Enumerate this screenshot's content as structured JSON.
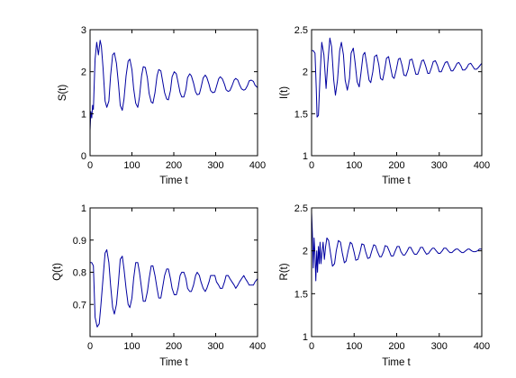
{
  "figure": {
    "background": "#ffffff",
    "line_color": "#0000a0"
  },
  "chart_data": [
    {
      "type": "line",
      "panel": "top-left",
      "xlabel": "Time t",
      "ylabel": "S(t)",
      "xlim": [
        0,
        400
      ],
      "ylim": [
        0,
        3
      ],
      "xticks": [
        0,
        100,
        200,
        300,
        400
      ],
      "yticks": [
        0,
        1,
        2,
        3
      ],
      "series": [
        {
          "color": "#0000a0",
          "x": [
            0,
            2,
            4,
            6,
            8,
            10,
            12,
            16,
            20,
            24,
            27,
            31,
            36,
            40,
            45,
            49,
            54,
            58,
            63,
            68,
            72,
            77,
            81,
            86,
            91,
            95,
            100,
            104,
            109,
            114,
            118,
            123,
            127,
            132,
            137,
            141,
            146,
            150,
            155,
            160,
            164,
            169,
            173,
            178,
            183,
            187,
            192,
            196,
            201,
            206,
            210,
            215,
            219,
            224,
            229,
            233,
            238,
            242,
            247,
            252,
            256,
            261,
            265,
            270,
            275,
            279,
            284,
            288,
            293,
            298,
            302,
            307,
            311,
            316,
            321,
            325,
            330,
            334,
            339,
            344,
            348,
            353,
            357,
            362,
            367,
            371,
            376,
            380,
            385,
            390,
            394,
            400
          ],
          "y": [
            0.6,
            1.05,
            0.9,
            1.2,
            1.1,
            1.75,
            2.3,
            2.7,
            2.4,
            2.75,
            2.6,
            2.1,
            1.3,
            1.15,
            1.3,
            1.9,
            2.4,
            2.45,
            2.2,
            1.7,
            1.2,
            1.08,
            1.35,
            1.9,
            2.25,
            2.3,
            2.05,
            1.6,
            1.25,
            1.15,
            1.4,
            1.9,
            2.12,
            2.1,
            1.85,
            1.48,
            1.28,
            1.25,
            1.5,
            1.9,
            2.05,
            2.02,
            1.8,
            1.5,
            1.35,
            1.33,
            1.55,
            1.88,
            2.0,
            1.95,
            1.75,
            1.5,
            1.4,
            1.4,
            1.58,
            1.86,
            1.95,
            1.9,
            1.73,
            1.52,
            1.45,
            1.47,
            1.62,
            1.85,
            1.92,
            1.86,
            1.7,
            1.55,
            1.5,
            1.52,
            1.65,
            1.83,
            1.88,
            1.83,
            1.7,
            1.57,
            1.53,
            1.55,
            1.66,
            1.8,
            1.84,
            1.8,
            1.69,
            1.59,
            1.56,
            1.58,
            1.67,
            1.78,
            1.8,
            1.77,
            1.68,
            1.62
          ]
        }
      ]
    },
    {
      "type": "line",
      "panel": "top-right",
      "xlabel": "Time t",
      "ylabel": "I(t)",
      "xlim": [
        0,
        400
      ],
      "ylim": [
        1,
        2.5
      ],
      "xticks": [
        0,
        100,
        200,
        300,
        400
      ],
      "yticks": [
        1,
        1.5,
        2,
        2.5
      ],
      "series": [
        {
          "color": "#0000a0",
          "x": [
            0,
            4,
            8,
            11,
            13,
            16,
            20,
            24,
            29,
            34,
            38,
            43,
            47,
            52,
            56,
            61,
            66,
            70,
            75,
            79,
            84,
            89,
            93,
            98,
            102,
            107,
            112,
            116,
            121,
            125,
            130,
            135,
            139,
            144,
            148,
            153,
            158,
            162,
            167,
            171,
            176,
            181,
            185,
            190,
            194,
            199,
            204,
            208,
            213,
            217,
            222,
            227,
            231,
            236,
            240,
            245,
            250,
            254,
            259,
            263,
            268,
            273,
            277,
            282,
            286,
            291,
            296,
            300,
            305,
            309,
            314,
            319,
            323,
            328,
            332,
            337,
            342,
            346,
            351,
            355,
            360,
            365,
            369,
            374,
            378,
            383,
            388,
            392,
            400
          ],
          "y": [
            2.25,
            2.25,
            2.22,
            1.8,
            1.46,
            1.48,
            1.95,
            2.35,
            2.2,
            1.8,
            2.1,
            2.4,
            2.3,
            1.9,
            1.72,
            1.9,
            2.25,
            2.35,
            2.2,
            1.9,
            1.78,
            1.92,
            2.22,
            2.28,
            2.12,
            1.88,
            1.82,
            1.98,
            2.2,
            2.23,
            2.08,
            1.9,
            1.87,
            2.0,
            2.18,
            2.2,
            2.08,
            1.92,
            1.9,
            2.0,
            2.16,
            2.18,
            2.07,
            1.94,
            1.92,
            2.02,
            2.15,
            2.16,
            2.07,
            1.96,
            1.95,
            2.03,
            2.14,
            2.15,
            2.07,
            1.97,
            1.97,
            2.04,
            2.13,
            2.14,
            2.07,
            1.98,
            1.98,
            2.05,
            2.12,
            2.13,
            2.07,
            2.0,
            2.0,
            2.05,
            2.11,
            2.12,
            2.07,
            2.01,
            2.01,
            2.05,
            2.1,
            2.11,
            2.07,
            2.02,
            2.02,
            2.05,
            2.09,
            2.1,
            2.07,
            2.03,
            2.03,
            2.05,
            2.1
          ]
        }
      ]
    },
    {
      "type": "line",
      "panel": "bottom-left",
      "xlabel": "Time t",
      "ylabel": "Q(t)",
      "xlim": [
        0,
        400
      ],
      "ylim": [
        0.6,
        1
      ],
      "xticks": [
        0,
        100,
        200,
        300,
        400
      ],
      "yticks": [
        0.7,
        0.8,
        0.9,
        1
      ],
      "series": [
        {
          "color": "#0000a0",
          "x": [
            0,
            4,
            8,
            12,
            17,
            22,
            26,
            31,
            36,
            40,
            45,
            49,
            54,
            58,
            63,
            68,
            72,
            77,
            81,
            86,
            91,
            95,
            100,
            104,
            109,
            114,
            118,
            123,
            127,
            132,
            137,
            141,
            146,
            150,
            155,
            160,
            164,
            169,
            173,
            178,
            183,
            187,
            192,
            196,
            201,
            206,
            210,
            215,
            219,
            224,
            229,
            233,
            238,
            242,
            247,
            252,
            256,
            261,
            265,
            270,
            275,
            279,
            284,
            288,
            293,
            298,
            302,
            307,
            311,
            316,
            321,
            325,
            330,
            334,
            339,
            344,
            348,
            353,
            357,
            362,
            367,
            371,
            376,
            380,
            385,
            390,
            394,
            400
          ],
          "y": [
            0.83,
            0.83,
            0.82,
            0.66,
            0.63,
            0.64,
            0.7,
            0.78,
            0.86,
            0.87,
            0.83,
            0.76,
            0.69,
            0.67,
            0.7,
            0.77,
            0.84,
            0.85,
            0.81,
            0.75,
            0.7,
            0.69,
            0.72,
            0.78,
            0.83,
            0.83,
            0.8,
            0.75,
            0.71,
            0.71,
            0.74,
            0.78,
            0.82,
            0.82,
            0.79,
            0.75,
            0.72,
            0.72,
            0.75,
            0.79,
            0.81,
            0.81,
            0.78,
            0.75,
            0.73,
            0.73,
            0.75,
            0.79,
            0.8,
            0.8,
            0.78,
            0.75,
            0.74,
            0.74,
            0.76,
            0.79,
            0.8,
            0.79,
            0.77,
            0.75,
            0.74,
            0.75,
            0.77,
            0.79,
            0.79,
            0.79,
            0.77,
            0.76,
            0.75,
            0.75,
            0.77,
            0.79,
            0.79,
            0.78,
            0.77,
            0.76,
            0.75,
            0.76,
            0.77,
            0.78,
            0.79,
            0.78,
            0.77,
            0.76,
            0.76,
            0.76,
            0.77,
            0.78
          ]
        }
      ]
    },
    {
      "type": "line",
      "panel": "bottom-right",
      "xlabel": "Time t",
      "ylabel": "R(t)",
      "xlim": [
        0,
        400
      ],
      "ylim": [
        1,
        2.5
      ],
      "xticks": [
        0,
        100,
        200,
        300,
        400
      ],
      "yticks": [
        1,
        1.5,
        2,
        2.5
      ],
      "series": [
        {
          "color": "#0000a0",
          "x": [
            0,
            2,
            4,
            6,
            8,
            10,
            12,
            14,
            16,
            18,
            20,
            22,
            24,
            27,
            30,
            33,
            36,
            40,
            45,
            49,
            54,
            58,
            63,
            68,
            72,
            77,
            81,
            86,
            91,
            95,
            100,
            104,
            109,
            114,
            118,
            123,
            127,
            132,
            137,
            141,
            146,
            150,
            155,
            160,
            164,
            169,
            173,
            178,
            183,
            187,
            192,
            196,
            201,
            206,
            210,
            215,
            219,
            224,
            229,
            233,
            238,
            242,
            247,
            252,
            256,
            261,
            265,
            270,
            275,
            279,
            284,
            288,
            293,
            298,
            302,
            307,
            311,
            316,
            321,
            325,
            330,
            334,
            339,
            344,
            348,
            353,
            357,
            362,
            367,
            371,
            376,
            380,
            385,
            390,
            394,
            400
          ],
          "y": [
            2.45,
            2.2,
            1.8,
            2.15,
            1.95,
            1.65,
            2.0,
            1.75,
            2.05,
            1.85,
            2.1,
            1.85,
            1.95,
            2.1,
            1.9,
            2.05,
            2.15,
            2.12,
            1.95,
            1.82,
            1.85,
            2.0,
            2.12,
            2.1,
            1.98,
            1.86,
            1.88,
            2.0,
            2.1,
            2.08,
            1.98,
            1.89,
            1.9,
            1.99,
            2.08,
            2.07,
            1.99,
            1.91,
            1.92,
            1.99,
            2.07,
            2.06,
            1.99,
            1.93,
            1.93,
            1.99,
            2.06,
            2.05,
            1.99,
            1.94,
            1.94,
            1.99,
            2.05,
            2.05,
            1.99,
            1.95,
            1.95,
            1.99,
            2.04,
            2.04,
            1.99,
            1.96,
            1.96,
            2.0,
            2.04,
            2.04,
            2.0,
            1.96,
            1.97,
            2.0,
            2.03,
            2.03,
            2.0,
            1.97,
            1.97,
            2.0,
            2.03,
            2.03,
            2.0,
            1.98,
            1.98,
            2.0,
            2.02,
            2.02,
            2.0,
            1.98,
            1.98,
            2.0,
            2.02,
            2.02,
            2.0,
            1.99,
            1.99,
            2.0,
            2.02,
            2.02
          ]
        }
      ]
    }
  ]
}
